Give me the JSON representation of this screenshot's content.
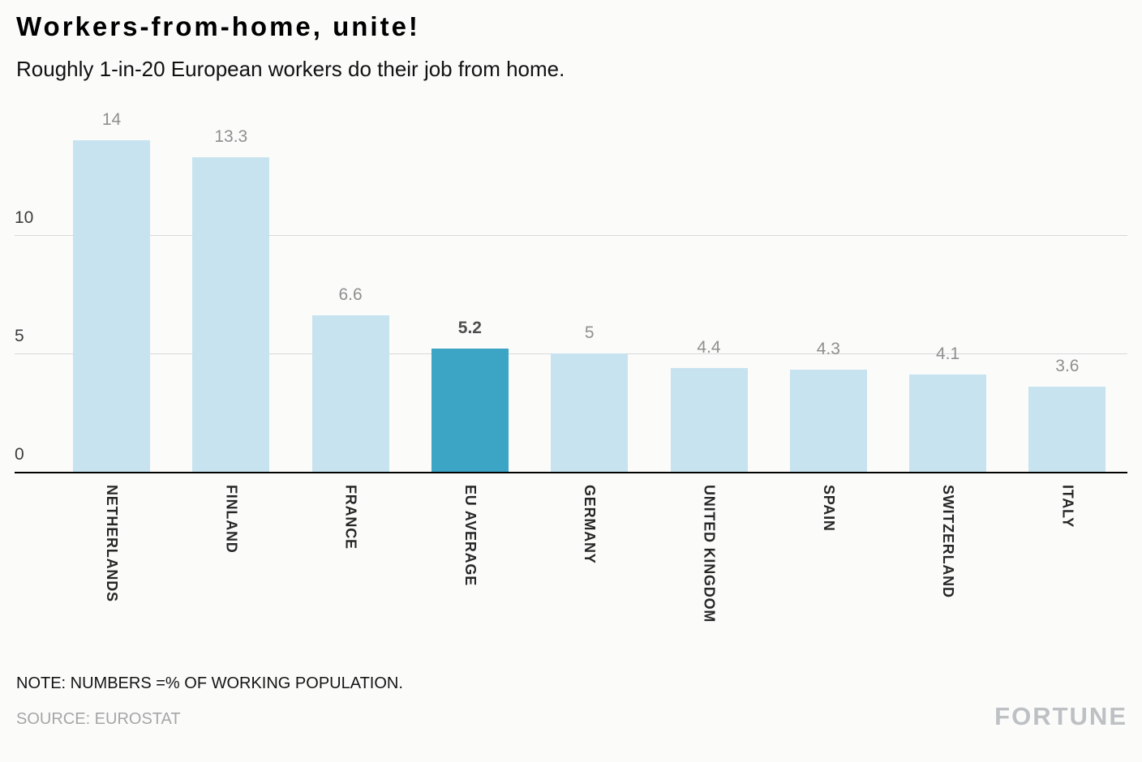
{
  "header": {
    "title": "Workers-from-home, unite!",
    "subtitle": "Roughly 1-in-20 European workers do their job from home."
  },
  "chart_data": {
    "type": "bar",
    "categories": [
      "NETHERLANDS",
      "FINLAND",
      "FRANCE",
      "EU AVERAGE",
      "GERMANY",
      "UNITED KINGDOM",
      "SPAIN",
      "SWITZERLAND",
      "ITALY"
    ],
    "values": [
      14,
      13.3,
      6.6,
      5.2,
      5,
      4.4,
      4.3,
      4.1,
      3.6
    ],
    "value_labels": [
      "14",
      "13.3",
      "6.6",
      "5.2",
      "5",
      "4.4",
      "4.3",
      "4.1",
      "3.6"
    ],
    "highlight_index": 3,
    "highlight_label": "EU AVERAGE",
    "yticks": [
      0,
      5,
      10
    ],
    "ylim": [
      0,
      14.8
    ],
    "grid": true,
    "legend": "none",
    "bar_color": "#c7e3ef",
    "highlight_color": "#3ca4c5",
    "gridline_color": "#d9d9d9",
    "axis_color": "#000000",
    "title": "Workers-from-home, unite!",
    "subtitle": "Roughly 1-in-20 European workers do their job from home.",
    "xlabel": "",
    "ylabel": ""
  },
  "footer": {
    "note": "NOTE: NUMBERS =% OF WORKING POPULATION.",
    "source": "SOURCE: EUROSTAT",
    "brand": "FORTUNE"
  }
}
